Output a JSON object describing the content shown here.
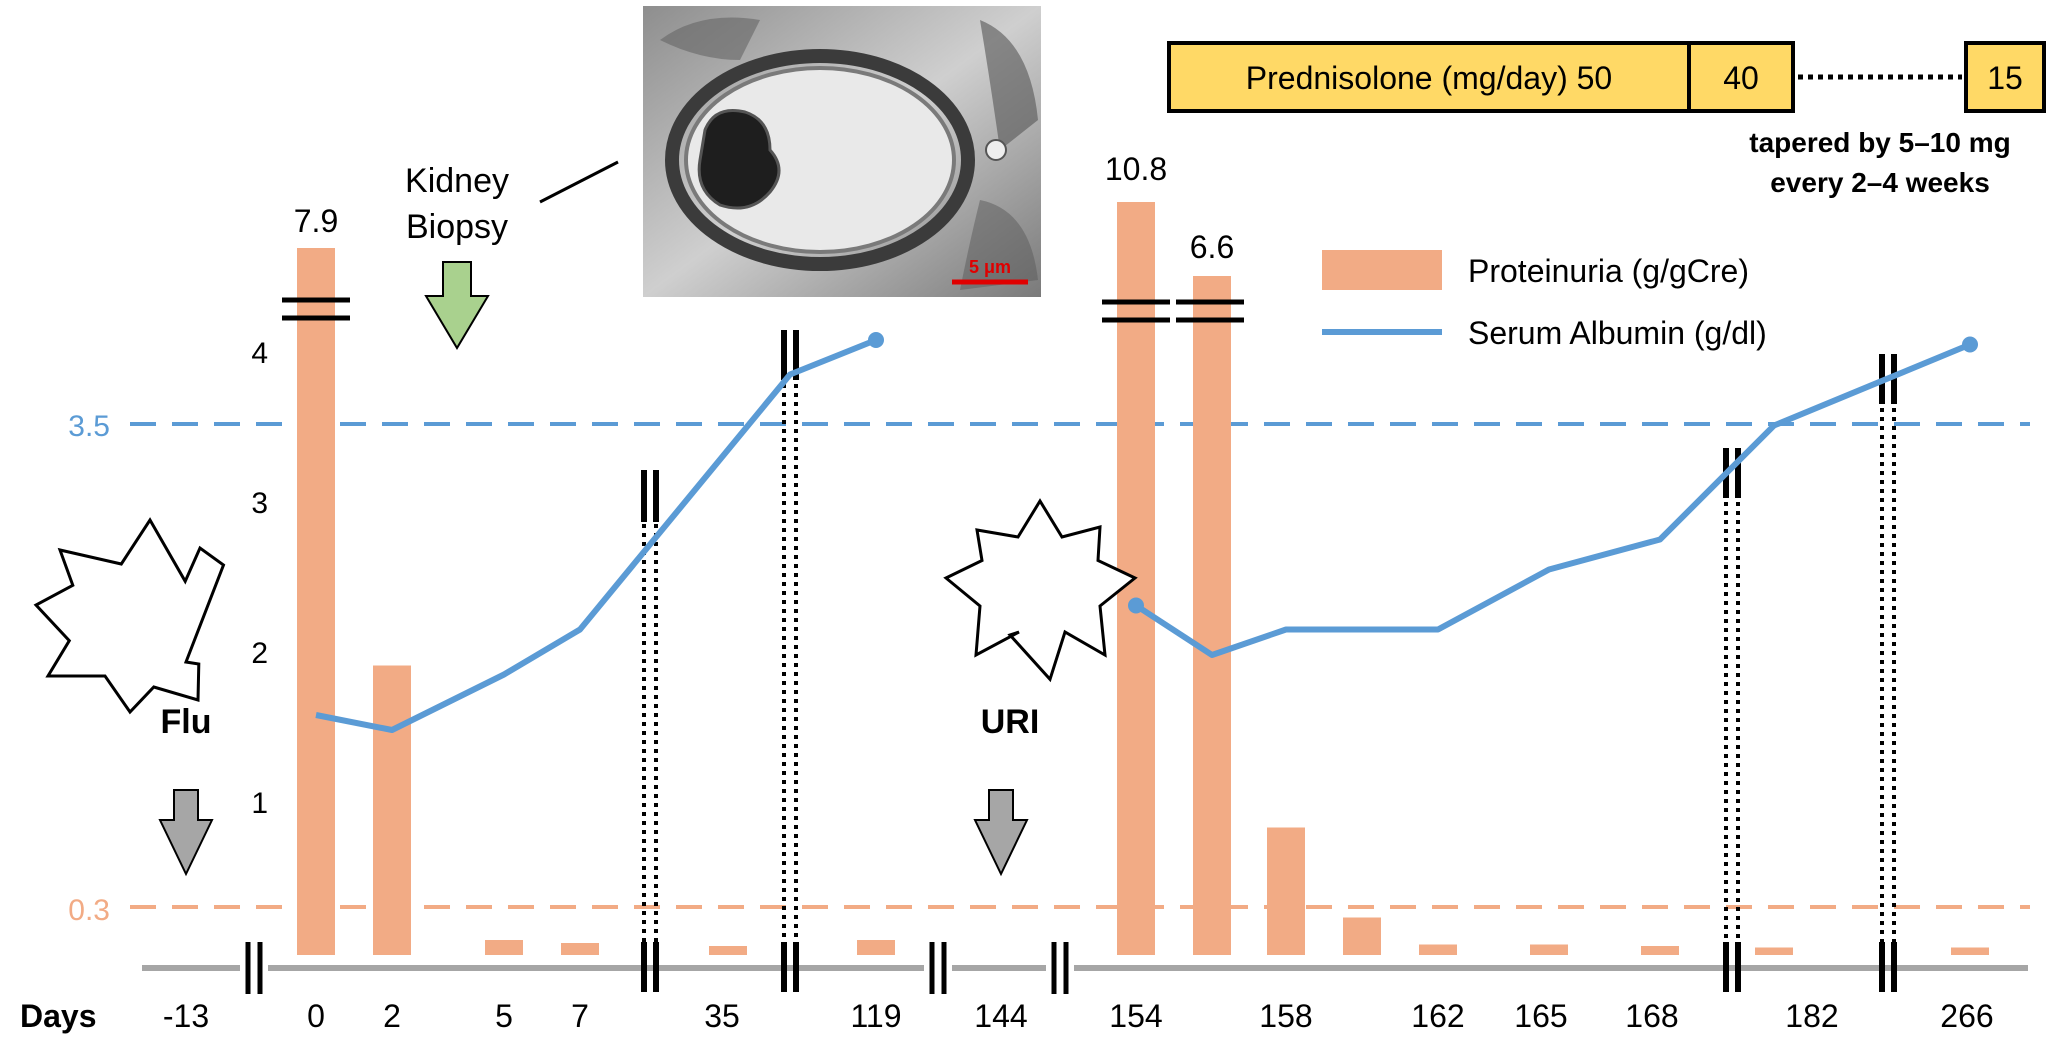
{
  "chart_data": {
    "type": "bar",
    "xlabel": "Days",
    "categories": [
      "-13",
      "0",
      "2",
      "5",
      "7",
      "35",
      "119",
      "144",
      "154",
      "158",
      "162",
      "165",
      "168",
      "182",
      "266"
    ],
    "y_ticks": [
      "1",
      "2",
      "3",
      "4"
    ],
    "series": [
      {
        "name": "Proteinuria (g/gCre)",
        "type": "bar",
        "color": "#F2AB85",
        "points": [
          {
            "x": 0,
            "y": 7.9,
            "label": "7.9",
            "broken": true
          },
          {
            "x": 2,
            "y": 1.93
          },
          {
            "x": 5,
            "y": 0.1
          },
          {
            "x": 7,
            "y": 0.08
          },
          {
            "x": 35,
            "y": 0.06
          },
          {
            "x": 119,
            "y": 0.1
          },
          {
            "x": 154,
            "y": 10.8,
            "label": "10.8",
            "broken": true
          },
          {
            "x": 154,
            "y": 6.6,
            "label": "6.6",
            "broken": true
          },
          {
            "x": 158,
            "y": 0.85
          },
          {
            "x": 158,
            "y": 0.25
          },
          {
            "x": 162,
            "y": 0.07
          },
          {
            "x": 165,
            "y": 0.07
          },
          {
            "x": 168,
            "y": 0.06
          },
          {
            "x": 182,
            "y": 0.05
          },
          {
            "x": 266,
            "y": 0.05
          }
        ]
      },
      {
        "name": "Serum Albumin (g/dl)",
        "type": "line",
        "color": "#5B9BD5",
        "segments": [
          [
            {
              "x": 0,
              "y": 1.6
            },
            {
              "x": 2,
              "y": 1.5
            },
            {
              "x": 5,
              "y": 1.87
            },
            {
              "x": 7,
              "y": 2.17
            },
            {
              "x": 35,
              "y": 3.87
            },
            {
              "x": 119,
              "y": 4.1
            }
          ],
          [
            {
              "x": 154,
              "y": 2.33
            },
            {
              "x": 154,
              "y": 2.0
            },
            {
              "x": 158,
              "y": 2.17
            },
            {
              "x": 162,
              "y": 2.17
            },
            {
              "x": 165,
              "y": 2.57
            },
            {
              "x": 168,
              "y": 2.77
            },
            {
              "x": 182,
              "y": 3.53
            },
            {
              "x": 266,
              "y": 4.07
            }
          ]
        ]
      }
    ],
    "reference_lines": [
      {
        "label": "3.5",
        "value": 3.5,
        "color": "#5B9BD5"
      },
      {
        "label": "0.3",
        "value": 0.3,
        "color": "#F2AB85"
      }
    ],
    "legend_position": "top-right"
  },
  "annotations": {
    "biopsy": {
      "line1": "Kidney",
      "line2": "Biopsy"
    },
    "scale_bar": "5 μm",
    "flu": "Flu",
    "uri": "URI"
  },
  "treatment": {
    "drug": "Prednisolone (mg/day) 50",
    "dose2": "40",
    "dose3": "15",
    "note1": "tapered by 5–10 mg",
    "note2": "every 2–4 weeks"
  },
  "colors": {
    "prednisolone_fill": "#FFD966",
    "biopsy_arrow": "#A9D18E",
    "event_arrow": "#A6A6A6",
    "axis_line": "#A6A6A6"
  }
}
